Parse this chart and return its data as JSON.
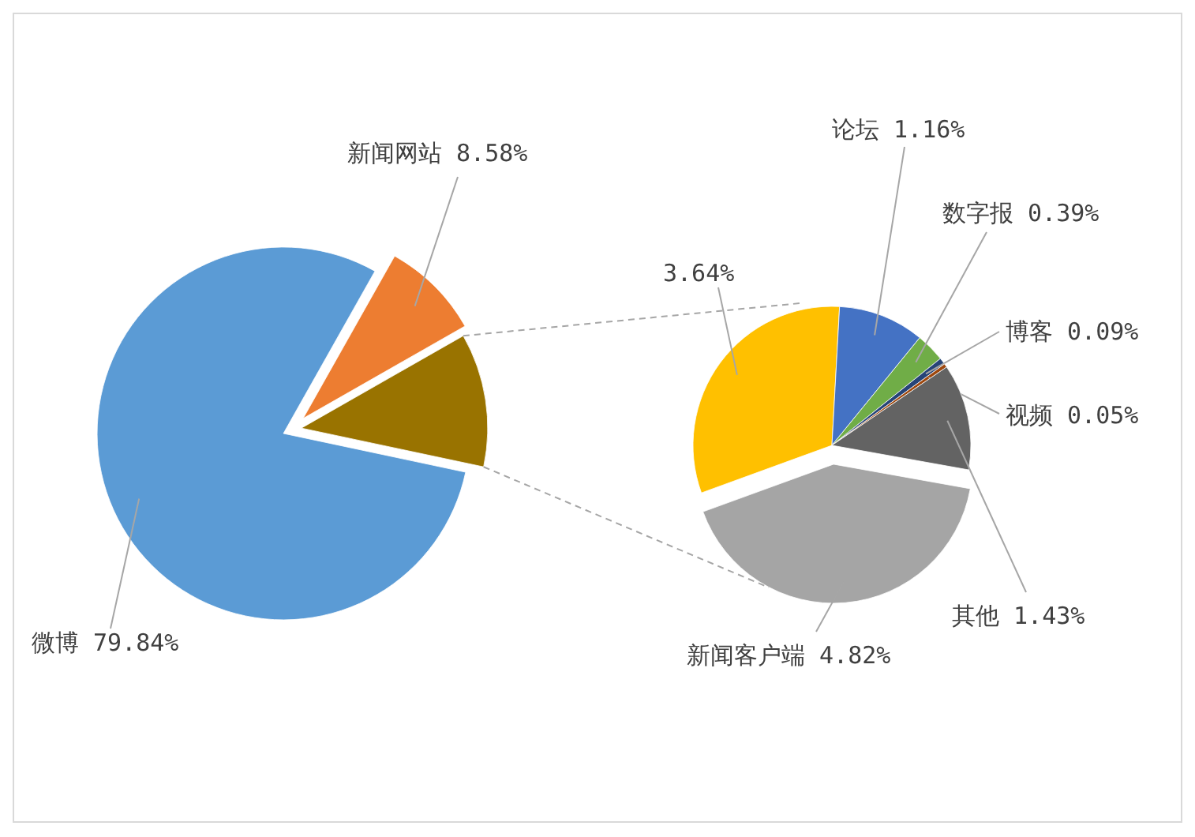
{
  "chart_data": [
    {
      "type": "pie",
      "categories": [
        "微博",
        "新闻网站",
        null
      ],
      "values": [
        79.84,
        8.58,
        11.58
      ],
      "colors": [
        "#5b9bd5",
        "#ed7d31",
        "#997300"
      ],
      "value_labels": [
        "79.84%",
        "8.58%",
        null
      ]
    },
    {
      "type": "pie",
      "categories": [
        null,
        "论坛",
        "数字报",
        "博客",
        "视频",
        "其他",
        "新闻客户端"
      ],
      "values": [
        3.64,
        1.16,
        0.39,
        0.09,
        0.05,
        1.43,
        4.82
      ],
      "colors": [
        "#ffc000",
        "#4472c4",
        "#70ad47",
        "#264478",
        "#9e480e",
        "#636363",
        "#a5a5a5"
      ],
      "value_labels": [
        "3.64%",
        "1.16%",
        "0.39%",
        "0.09%",
        "0.05%",
        "1.43%",
        "4.82%"
      ]
    }
  ]
}
